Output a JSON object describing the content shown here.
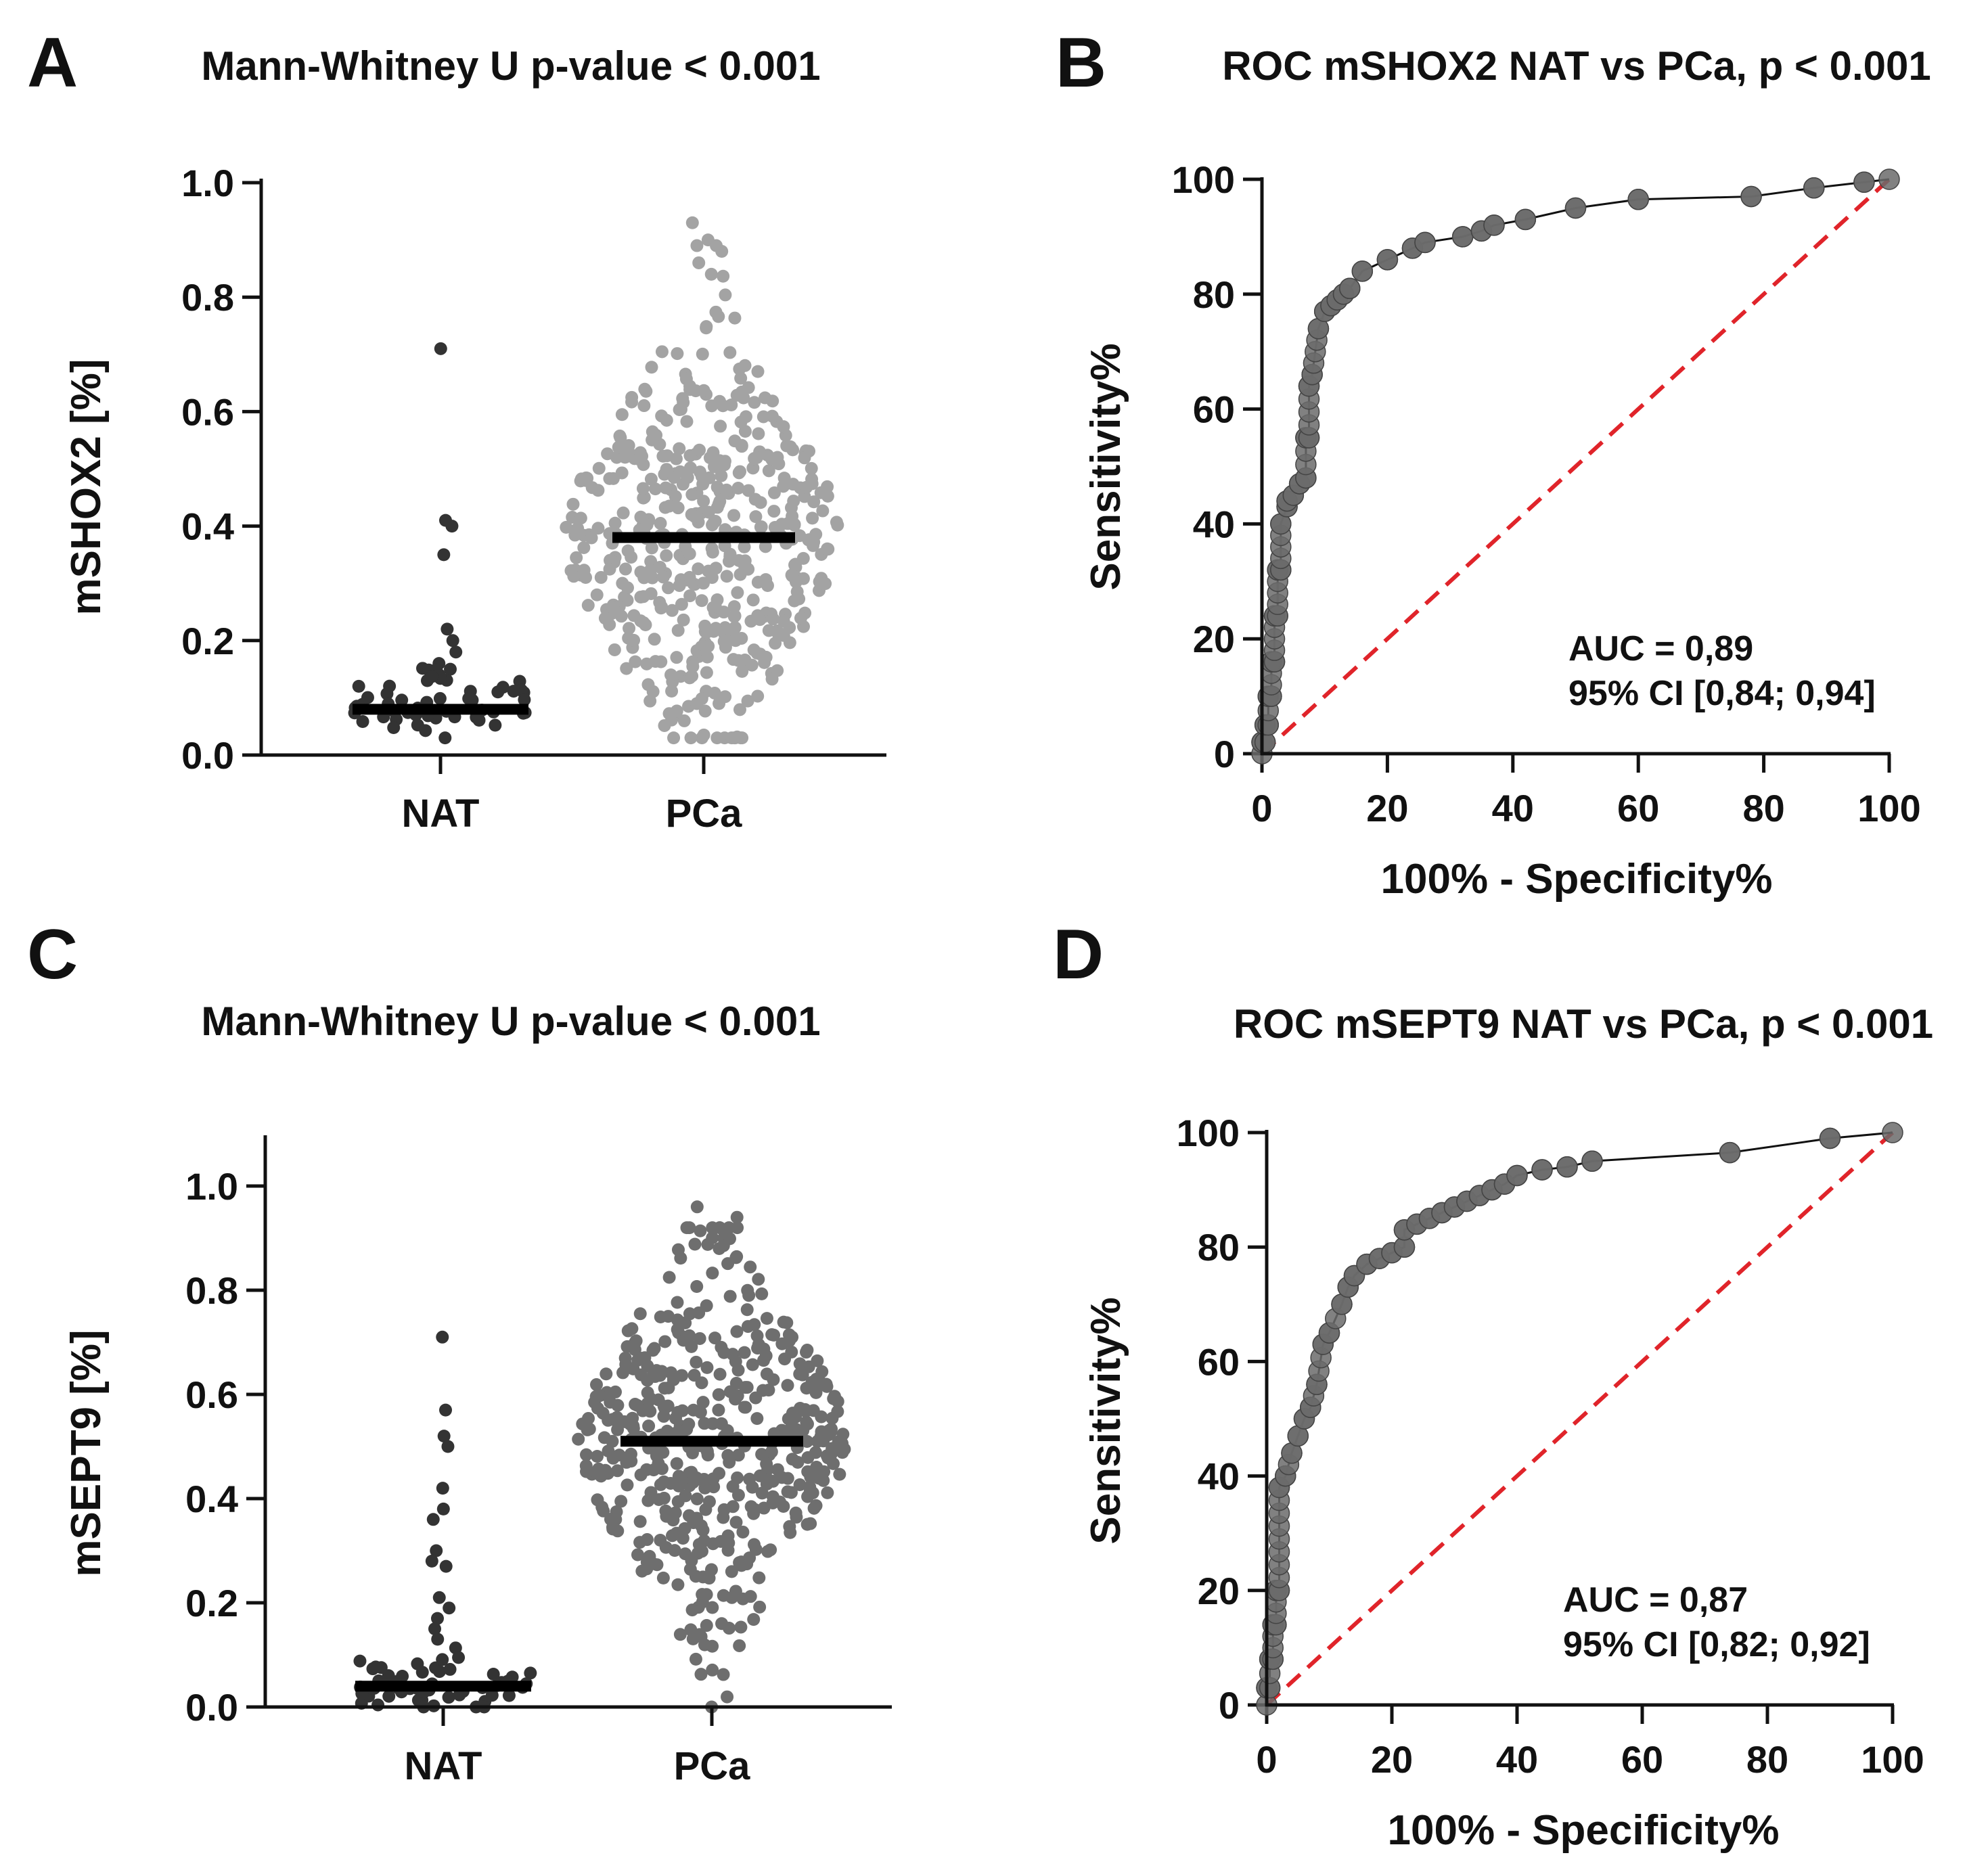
{
  "colors": {
    "axis": "#111111",
    "nat_points": "#333333",
    "pca_points_A": "#a3a3a3",
    "pca_points_C": "#6e6e6e",
    "median": "#000000",
    "roc_points": "#6b6b6b",
    "roc_line": "#111111",
    "reference_line": "#e0242a"
  },
  "chart_data": [
    {
      "panel": "A",
      "type": "scatter",
      "subtype": "dot-plot",
      "title": "Mann-Whitney U p-value < 0.001",
      "ylabel": "mSHOX2 [%]",
      "xlabel": "",
      "ylim": [
        0,
        1.0
      ],
      "yticks": [
        "0.0",
        "0.2",
        "0.4",
        "0.6",
        "0.8",
        "1.0"
      ],
      "categories": [
        "NAT",
        "PCa"
      ],
      "medians": [
        0.08,
        0.38
      ],
      "groups": [
        {
          "name": "NAT",
          "n": 62,
          "min": 0.03,
          "max": 0.71,
          "median": 0.08,
          "notable_values": [
            0.71,
            0.41,
            0.4,
            0.35,
            0.22,
            0.2,
            0.18,
            0.16,
            0.15,
            0.14,
            0.13
          ]
        },
        {
          "name": "PCa",
          "n": 480,
          "min": 0.03,
          "max": 0.93,
          "median": 0.38,
          "notable_values": [
            0.93,
            0.9,
            0.88,
            0.86,
            0.84
          ]
        }
      ]
    },
    {
      "panel": "B",
      "type": "line",
      "subtype": "roc",
      "title": "ROC mSHOX2 NAT vs PCa, p < 0.001",
      "xlabel": "100% - Specificity%",
      "ylabel": "Sensitivity%",
      "xlim": [
        0,
        100
      ],
      "ylim": [
        0,
        100
      ],
      "xticks": [
        "0",
        "20",
        "40",
        "60",
        "80",
        "100"
      ],
      "yticks": [
        "0",
        "20",
        "40",
        "60",
        "80",
        "100"
      ],
      "x": [
        0,
        0,
        0.5,
        0.5,
        1,
        1,
        1.5,
        1.5,
        2,
        2,
        2.5,
        2.5,
        3,
        3,
        4,
        4,
        5,
        6,
        7,
        7,
        7.5,
        7.5,
        8,
        9,
        10,
        11,
        12,
        13,
        14,
        16,
        20,
        24,
        26,
        32,
        35,
        37,
        42,
        50,
        60,
        78,
        88,
        96,
        100
      ],
      "y": [
        0,
        2,
        2,
        5,
        5,
        10,
        10,
        16,
        16,
        24,
        24,
        32,
        32,
        40,
        43,
        44,
        45,
        47,
        48,
        55,
        55,
        64,
        66,
        74,
        77,
        78,
        79,
        80,
        81,
        84,
        86,
        88,
        89,
        90,
        91,
        92,
        93,
        95,
        96.5,
        97,
        98.5,
        99.5,
        100
      ],
      "auc_label": "AUC = 0,89",
      "ci_label": "95% CI [0,84; 0,94]"
    },
    {
      "panel": "C",
      "type": "scatter",
      "subtype": "dot-plot",
      "title": "Mann-Whitney U p-value < 0.001",
      "ylabel": "mSEPT9 [%]",
      "xlabel": "",
      "ylim": [
        0,
        1.1
      ],
      "yticks": [
        "0.0",
        "0.2",
        "0.4",
        "0.6",
        "0.8",
        "1.0"
      ],
      "categories": [
        "NAT",
        "PCa"
      ],
      "medians": [
        0.04,
        0.51
      ],
      "groups": [
        {
          "name": "NAT",
          "n": 70,
          "min": 0.0,
          "max": 0.71,
          "median": 0.04,
          "notable_values": [
            0.71,
            0.57,
            0.52,
            0.5,
            0.42,
            0.38,
            0.36,
            0.3,
            0.28,
            0.27,
            0.21,
            0.19,
            0.17,
            0.15,
            0.13
          ]
        },
        {
          "name": "PCa",
          "n": 480,
          "min": 0.0,
          "max": 0.96,
          "median": 0.51,
          "notable_values": [
            0.96,
            0.94,
            0.92,
            0.9
          ]
        }
      ]
    },
    {
      "panel": "D",
      "type": "line",
      "subtype": "roc",
      "title": "ROC mSEPT9 NAT vs PCa, p < 0.001",
      "xlabel": "100% - Specificity%",
      "ylabel": "Sensitivity%",
      "xlim": [
        0,
        100
      ],
      "ylim": [
        0,
        100
      ],
      "xticks": [
        "0",
        "20",
        "40",
        "60",
        "80",
        "100"
      ],
      "yticks": [
        "0",
        "20",
        "40",
        "60",
        "80",
        "100"
      ],
      "x": [
        0,
        0,
        0.5,
        0.5,
        1,
        1,
        1.5,
        1.5,
        2,
        2,
        3,
        4,
        5,
        6,
        7,
        8,
        9,
        10,
        12,
        13,
        14,
        16,
        18,
        20,
        22,
        22,
        24,
        26,
        28,
        30,
        32,
        34,
        36,
        38,
        40,
        44,
        48,
        52,
        74,
        90,
        100
      ],
      "y": [
        0,
        3,
        3,
        8,
        8,
        14,
        14,
        20,
        20,
        38,
        40,
        44,
        47,
        50,
        52,
        56,
        63,
        65,
        70,
        73,
        75,
        77,
        78,
        79,
        80,
        83,
        84,
        85,
        86,
        87,
        88,
        89,
        90,
        91,
        92.5,
        93.5,
        94,
        95,
        96.5,
        99,
        100
      ],
      "auc_label": "AUC = 0,87",
      "ci_label": "95% CI [0,82; 0,92]"
    }
  ]
}
